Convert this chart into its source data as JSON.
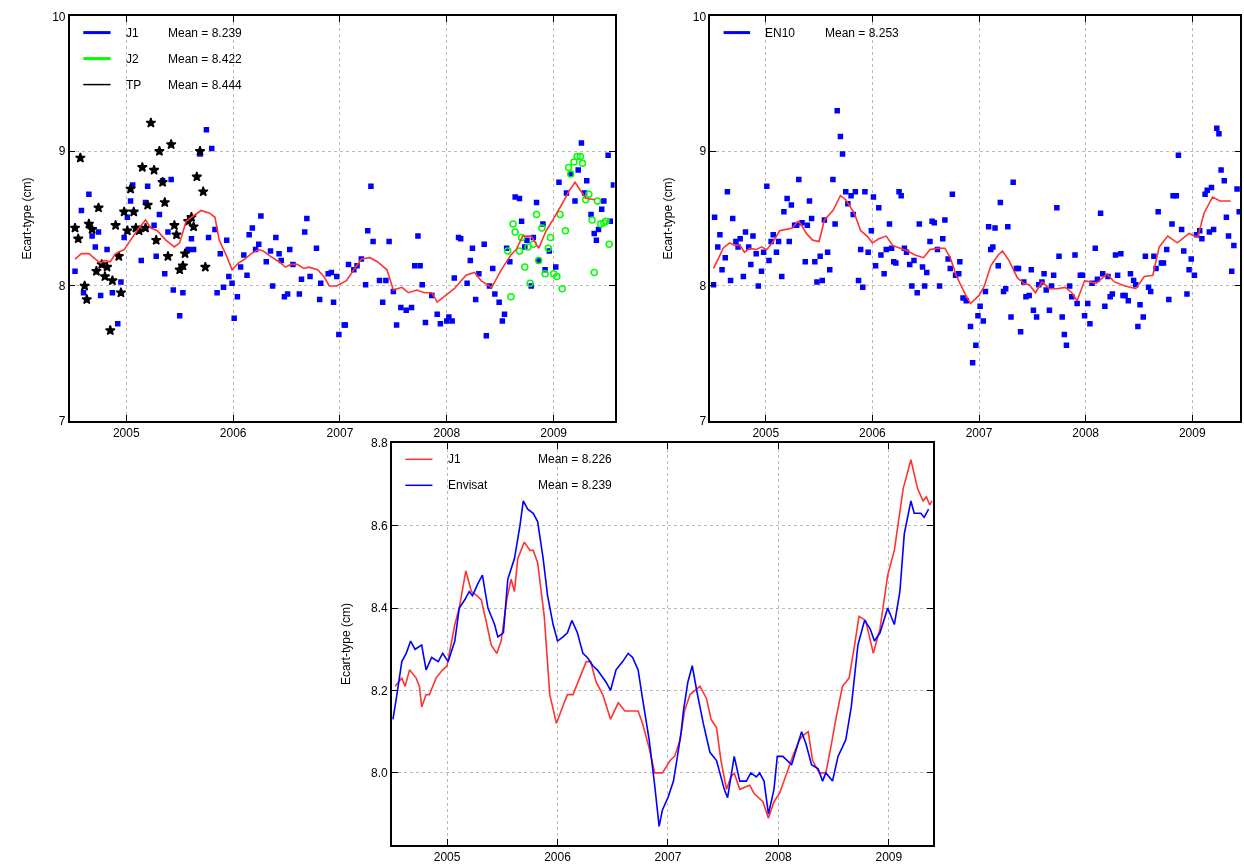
{
  "chart_data": [
    {
      "type": "scatter",
      "ylabel": "Ecart-type (cm)",
      "xlim": [
        2004.47,
        2009.57
      ],
      "ylim": [
        7,
        10
      ],
      "xticks": [
        2005,
        2006,
        2007,
        2008,
        2009
      ],
      "yticks": [
        7,
        8,
        9,
        10
      ],
      "grid": true,
      "legend": "top left",
      "annotations": [
        "Mean = 8.239",
        "Mean = 8.422",
        "Mean = 8.444"
      ],
      "series": [
        {
          "name": "J1",
          "color": "#0000ff",
          "marker": "square",
          "x": [
            2004.52,
            2004.58,
            2004.6,
            2004.65,
            2004.68,
            2004.71,
            2004.74,
            2004.76,
            2004.82,
            2004.87,
            2004.92,
            2004.95,
            2004.98,
            2005.01,
            2005.04,
            2005.06,
            2005.14,
            2005.18,
            2005.2,
            2005.26,
            2005.28,
            2005.31,
            2005.34,
            2005.36,
            2005.39,
            2005.42,
            2005.44,
            2005.5,
            2005.53,
            2005.58,
            2005.61,
            2005.63,
            2005.69,
            2005.75,
            2005.77,
            2005.8,
            2005.83,
            2005.85,
            2005.88,
            2005.91,
            2005.94,
            2005.96,
            2005.99,
            2006.01,
            2006.04,
            2006.07,
            2006.1,
            2006.13,
            2006.15,
            2006.18,
            2006.21,
            2006.24,
            2006.26,
            2006.31,
            2006.35,
            2006.37,
            2006.4,
            2006.43,
            2006.45,
            2006.48,
            2006.51,
            2006.53,
            2006.56,
            2006.62,
            2006.64,
            2006.67,
            2006.69,
            2006.72,
            2006.78,
            2006.81,
            2006.82,
            2006.89,
            2006.92,
            2006.94,
            2006.97,
            2006.99,
            2007.04,
            2007.05,
            2007.08,
            2007.13,
            2007.16,
            2007.2,
            2007.24,
            2007.26,
            2007.29,
            2007.31,
            2007.37,
            2007.4,
            2007.43,
            2007.46,
            2007.5,
            2007.53,
            2007.57,
            2007.62,
            2007.67,
            2007.7,
            2007.73,
            2007.75,
            2007.77,
            2007.8,
            2007.86,
            2007.91,
            2007.94,
            2008.0,
            2008.02,
            2008.05,
            2008.07,
            2008.11,
            2008.13,
            2008.19,
            2008.22,
            2008.24,
            2008.27,
            2008.3,
            2008.35,
            2008.37,
            2008.4,
            2008.43,
            2008.45,
            2008.49,
            2008.52,
            2008.54,
            2008.56,
            2008.59,
            2008.64,
            2008.68,
            2008.7,
            2008.73,
            2008.75,
            2008.79,
            2008.81,
            2008.84,
            2008.86,
            2008.9,
            2008.92,
            2008.96,
            2009.02,
            2009.05,
            2009.12,
            2009.16,
            2009.2,
            2009.23,
            2009.26,
            2009.29,
            2009.31,
            2009.35,
            2009.38,
            2009.4,
            2009.42,
            2009.45,
            2009.47,
            2009.51,
            2009.53,
            2009.56
          ],
          "values": [
            8.11,
            8.56,
            7.95,
            8.68,
            8.37,
            8.29,
            8.4,
            7.93,
            8.27,
            7.95,
            7.72,
            8.03,
            8.36,
            8.51,
            8.63,
            8.75,
            8.19,
            8.62,
            8.74,
            8.45,
            8.22,
            8.53,
            8.78,
            8.09,
            8.4,
            8.79,
            7.97,
            7.78,
            7.95,
            8.27,
            8.35,
            8.27,
            8.98,
            9.16,
            8.36,
            9.02,
            8.42,
            7.95,
            8.24,
            7.99,
            8.34,
            8.07,
            8.02,
            7.76,
            7.92,
            8.14,
            8.23,
            8.08,
            8.38,
            8.43,
            8.27,
            8.31,
            8.52,
            8.18,
            8.26,
            8.0,
            8.36,
            8.24,
            8.19,
            7.92,
            7.94,
            8.27,
            8.16,
            7.94,
            8.05,
            8.4,
            8.5,
            8.07,
            8.28,
            7.9,
            8.02,
            8.09,
            8.1,
            7.88,
            8.07,
            7.64,
            7.71,
            7.71,
            8.16,
            8.12,
            8.15,
            8.2,
            8.01,
            8.41,
            8.74,
            8.33,
            8.04,
            7.88,
            8.04,
            8.33,
            7.96,
            7.71,
            7.84,
            7.82,
            7.84,
            8.15,
            8.37,
            8.15,
            8.01,
            7.73,
            7.93,
            7.79,
            7.72,
            7.74,
            7.77,
            7.74,
            8.06,
            8.36,
            8.35,
            8.02,
            8.19,
            8.28,
            7.9,
            8.09,
            8.31,
            7.63,
            8.0,
            8.13,
            7.94,
            7.88,
            7.74,
            7.79,
            8.28,
            8.18,
            8.66,
            8.65,
            8.48,
            8.29,
            8.34,
            8.0,
            8.36,
            8.62,
            8.19,
            8.46,
            8.12,
            8.26,
            8.14,
            8.77,
            8.69,
            8.83,
            8.63,
            8.86,
            9.06,
            8.69,
            8.78,
            8.53,
            8.39,
            8.34,
            8.42,
            8.57,
            8.63,
            8.97,
            8.48,
            8.75
          ]
        },
        {
          "name": "J2",
          "color": "#00ff00",
          "marker": "circle",
          "x": [
            2008.57,
            2008.6,
            2008.62,
            2008.64,
            2008.68,
            2008.7,
            2008.73,
            2008.76,
            2008.78,
            2008.81,
            2008.84,
            2008.86,
            2008.89,
            2008.92,
            2008.95,
            2008.97,
            2009.0,
            2009.03,
            2009.06,
            2009.08,
            2009.11,
            2009.14,
            2009.16,
            2009.19,
            2009.22,
            2009.25,
            2009.27,
            2009.3,
            2009.33,
            2009.36,
            2009.38,
            2009.41,
            2009.44,
            2009.47,
            2009.49,
            2009.52
          ],
          "values": [
            8.26,
            7.92,
            8.46,
            8.4,
            8.26,
            8.36,
            8.14,
            8.29,
            8.02,
            8.31,
            8.53,
            8.19,
            8.43,
            8.09,
            8.28,
            8.36,
            8.09,
            8.07,
            8.53,
            7.98,
            8.41,
            8.88,
            8.83,
            8.92,
            8.96,
            8.96,
            8.91,
            8.64,
            8.68,
            8.49,
            8.1,
            8.63,
            8.46,
            8.47,
            8.48,
            8.31
          ]
        },
        {
          "name": "TP",
          "color": "#000000",
          "marker": "star",
          "x": [
            2004.52,
            2004.55,
            2004.57,
            2004.61,
            2004.63,
            2004.65,
            2004.68,
            2004.72,
            2004.74,
            2004.77,
            2004.8,
            2004.82,
            2004.85,
            2004.87,
            2004.9,
            2004.93,
            2004.95,
            2004.98,
            2005.01,
            2005.04,
            2005.07,
            2005.09,
            2005.12,
            2005.15,
            2005.18,
            2005.2,
            2005.23,
            2005.26,
            2005.28,
            2005.31,
            2005.34,
            2005.36,
            2005.39,
            2005.42,
            2005.45,
            2005.47,
            2005.5,
            2005.53,
            2005.55,
            2005.58,
            2005.61,
            2005.63,
            2005.66,
            2005.69,
            2005.72,
            2005.74
          ],
          "values": [
            8.43,
            8.35,
            8.95,
            8.0,
            7.9,
            8.46,
            8.42,
            8.11,
            8.58,
            8.16,
            8.07,
            8.14,
            7.67,
            8.04,
            8.45,
            8.22,
            7.95,
            8.55,
            8.41,
            8.72,
            8.55,
            8.43,
            8.41,
            8.88,
            8.43,
            8.6,
            9.21,
            8.86,
            8.34,
            9.0,
            8.77,
            8.62,
            8.22,
            9.05,
            8.45,
            8.38,
            8.12,
            8.15,
            8.24,
            8.48,
            8.51,
            8.44,
            8.81,
            9.0,
            8.7,
            8.14
          ]
        },
        {
          "type": "line",
          "color": "#ff3333",
          "marker": "none",
          "x": [
            2004.52,
            2004.58,
            2004.65,
            2004.71,
            2004.76,
            2004.8,
            2004.85,
            2004.9,
            2004.98,
            2005.04,
            2005.1,
            2005.18,
            2005.23,
            2005.29,
            2005.37,
            2005.45,
            2005.5,
            2005.56,
            2005.61,
            2005.7,
            2005.78,
            2005.83,
            2005.87,
            2005.94,
            2005.99,
            2006.05,
            2006.11,
            2006.17,
            2006.24,
            2006.28,
            2006.35,
            2006.43,
            2006.49,
            2006.54,
            2006.6,
            2006.66,
            2006.71,
            2006.79,
            2006.85,
            2006.9,
            2006.97,
            2007.06,
            2007.13,
            2007.2,
            2007.28,
            2007.35,
            2007.44,
            2007.5,
            2007.58,
            2007.64,
            2007.72,
            2007.79,
            2007.86,
            2007.91,
            2007.99,
            2008.07,
            2008.18,
            2008.26,
            2008.32,
            2008.42,
            2008.51,
            2008.6,
            2008.65,
            2008.71,
            2008.79,
            2008.86,
            2008.93,
            2009.0,
            2009.08,
            2009.14,
            2009.2,
            2009.25,
            2009.3,
            2009.39
          ],
          "values": [
            8.2,
            8.24,
            8.24,
            8.2,
            8.17,
            8.19,
            8.18,
            8.24,
            8.27,
            8.34,
            8.41,
            8.49,
            8.43,
            8.41,
            8.34,
            8.29,
            8.32,
            8.48,
            8.51,
            8.56,
            8.54,
            8.51,
            8.34,
            8.22,
            8.12,
            8.17,
            8.2,
            8.24,
            8.27,
            8.26,
            8.22,
            8.18,
            8.14,
            8.16,
            8.16,
            8.13,
            8.14,
            8.12,
            8.07,
            8.0,
            8.0,
            8.04,
            8.12,
            8.2,
            8.21,
            8.18,
            8.12,
            7.97,
            7.99,
            7.95,
            7.97,
            7.95,
            7.95,
            7.88,
            7.93,
            7.98,
            8.08,
            8.1,
            8.04,
            7.99,
            8.12,
            8.23,
            8.27,
            8.37,
            8.37,
            8.28,
            8.41,
            8.5,
            8.61,
            8.7,
            8.77,
            8.71,
            8.65,
            8.64
          ]
        }
      ]
    },
    {
      "type": "scatter",
      "ylabel": "Ecart-type (cm)",
      "xlim": [
        2004.48,
        2009.45
      ],
      "ylim": [
        7,
        10
      ],
      "xticks": [
        2005,
        2006,
        2007,
        2008,
        2009
      ],
      "yticks": [
        7,
        8,
        9,
        10
      ],
      "grid": true,
      "legend": "top left",
      "annotations": [
        "Mean = 8.253"
      ],
      "series": [
        {
          "name": "EN10",
          "color": "#0000ff",
          "marker": "square",
          "x": [
            2004.51,
            2004.52,
            2004.55,
            2004.57,
            2004.59,
            2004.62,
            2004.64,
            2004.67,
            2004.69,
            2004.72,
            2004.74,
            2004.76,
            2004.79,
            2004.81,
            2004.84,
            2004.86,
            2004.88,
            2004.91,
            2004.93,
            2004.96,
            2004.98,
            2005.01,
            2005.03,
            2005.05,
            2005.07,
            2005.1,
            2005.12,
            2005.15,
            2005.17,
            2005.2,
            2005.22,
            2005.24,
            2005.27,
            2005.29,
            2005.31,
            2005.34,
            2005.37,
            2005.39,
            2005.41,
            2005.43,
            2005.46,
            2005.48,
            2005.51,
            2005.53,
            2005.55,
            2005.58,
            2005.6,
            2005.63,
            2005.65,
            2005.67,
            2005.7,
            2005.72,
            2005.75,
            2005.77,
            2005.8,
            2005.82,
            2005.84,
            2005.87,
            2005.89,
            2005.91,
            2005.93,
            2005.96,
            2005.99,
            2006.01,
            2006.03,
            2006.06,
            2006.08,
            2006.11,
            2006.13,
            2006.16,
            2006.18,
            2006.2,
            2006.22,
            2006.25,
            2006.27,
            2006.3,
            2006.32,
            2006.35,
            2006.37,
            2006.39,
            2006.42,
            2006.44,
            2006.47,
            2006.49,
            2006.51,
            2006.54,
            2006.56,
            2006.58,
            2006.61,
            2006.63,
            2006.66,
            2006.68,
            2006.71,
            2006.73,
            2006.75,
            2006.78,
            2006.81,
            2006.82,
            2006.85,
            2006.88,
            2006.92,
            2006.94,
            2006.97,
            2006.99,
            2007.01,
            2007.04,
            2007.06,
            2007.09,
            2007.11,
            2007.13,
            2007.15,
            2007.18,
            2007.2,
            2007.23,
            2007.25,
            2007.27,
            2007.3,
            2007.32,
            2007.35,
            2007.37,
            2007.39,
            2007.42,
            2007.44,
            2007.47,
            2007.49,
            2007.51,
            2007.54,
            2007.56,
            2007.59,
            2007.61,
            2007.63,
            2007.66,
            2007.68,
            2007.7,
            2007.73,
            2007.75,
            2007.78,
            2007.8,
            2007.82,
            2007.85,
            2007.87,
            2007.9,
            2007.92,
            2007.95,
            2007.97,
            2007.99,
            2008.02,
            2008.04,
            2008.06,
            2008.09,
            2008.11,
            2008.14,
            2008.16,
            2008.18,
            2008.21,
            2008.23,
            2008.25,
            2008.28,
            2008.3,
            2008.33,
            2008.35,
            2008.37,
            2008.4,
            2008.42,
            2008.45,
            2008.47,
            2008.49,
            2008.51,
            2008.54,
            2008.56,
            2008.59,
            2008.61,
            2008.64,
            2008.66,
            2008.68,
            2008.71,
            2008.73,
            2008.76,
            2008.78,
            2008.81,
            2008.82,
            2008.85,
            2008.87,
            2008.9,
            2008.92,
            2008.95,
            2008.97,
            2008.99,
            2009.02,
            2009.04,
            2009.07,
            2009.09,
            2009.12,
            2009.14,
            2009.16,
            2009.18,
            2009.2,
            2009.23,
            2009.25,
            2009.27,
            2009.3,
            2009.32,
            2009.34,
            2009.37,
            2009.39,
            2009.42,
            2009.44
          ],
          "values": [
            8.01,
            8.51,
            8.29,
            8.38,
            8.12,
            8.21,
            8.7,
            8.04,
            8.5,
            8.33,
            8.29,
            8.35,
            8.07,
            8.4,
            8.29,
            8.16,
            8.37,
            8.24,
            8.0,
            8.11,
            8.25,
            8.74,
            8.19,
            8.33,
            8.38,
            8.25,
            8.33,
            8.07,
            8.55,
            8.65,
            8.33,
            8.6,
            8.45,
            8.45,
            8.79,
            8.47,
            8.18,
            8.45,
            8.63,
            8.5,
            8.18,
            8.03,
            8.22,
            8.04,
            8.49,
            8.25,
            8.12,
            8.79,
            8.46,
            9.3,
            9.11,
            8.98,
            8.7,
            8.61,
            8.67,
            8.53,
            8.7,
            8.04,
            8.27,
            7.99,
            8.7,
            8.25,
            8.41,
            8.66,
            8.15,
            8.58,
            8.23,
            8.09,
            8.27,
            8.46,
            8.28,
            8.18,
            8.17,
            8.7,
            8.67,
            8.28,
            8.25,
            8.16,
            8.0,
            8.19,
            7.95,
            8.46,
            8.14,
            8.0,
            8.1,
            8.33,
            8.48,
            8.47,
            8.27,
            8.0,
            8.35,
            8.49,
            8.2,
            8.13,
            8.68,
            8.08,
            8.09,
            8.18,
            7.91,
            7.89,
            7.7,
            7.43,
            7.56,
            7.78,
            7.85,
            7.74,
            7.96,
            8.44,
            8.27,
            8.29,
            8.43,
            8.15,
            8.62,
            7.96,
            7.98,
            8.44,
            7.77,
            8.77,
            8.13,
            8.13,
            7.66,
            8.03,
            7.92,
            7.93,
            8.12,
            7.82,
            7.77,
            8.01,
            8.03,
            8.09,
            7.97,
            7.82,
            8.0,
            8.08,
            8.58,
            8.22,
            7.77,
            7.64,
            7.56,
            8.0,
            7.92,
            8.23,
            7.87,
            8.08,
            8.08,
            7.78,
            7.87,
            7.72,
            8.02,
            8.28,
            8.05,
            8.54,
            8.09,
            7.85,
            8.07,
            7.92,
            7.94,
            8.23,
            8.08,
            8.24,
            7.93,
            7.93,
            7.89,
            8.09,
            8.04,
            8.01,
            7.7,
            7.86,
            7.77,
            8.22,
            7.99,
            7.96,
            8.22,
            8.13,
            8.55,
            8.17,
            8.17,
            8.27,
            7.9,
            8.46,
            8.67,
            8.67,
            8.97,
            8.42,
            8.26,
            7.94,
            8.12,
            8.2,
            8.08,
            8.38,
            8.41,
            8.35,
            8.68,
            8.71,
            8.4,
            8.73,
            8.42,
            9.17,
            9.13,
            8.86,
            8.78,
            8.51,
            8.37,
            8.11,
            8.3,
            8.72,
            8.55
          ]
        },
        {
          "type": "line",
          "color": "#ff3333",
          "marker": "none",
          "x": [
            2004.51,
            2004.56,
            2004.6,
            2004.66,
            2004.71,
            2004.76,
            2004.8,
            2004.85,
            2004.91,
            2004.96,
            2005.01,
            2005.07,
            2005.13,
            2005.19,
            2005.25,
            2005.3,
            2005.33,
            2005.38,
            2005.44,
            2005.5,
            2005.55,
            2005.63,
            2005.7,
            2005.75,
            2005.83,
            2005.89,
            2005.95,
            2006.0,
            2006.06,
            2006.13,
            2006.19,
            2006.26,
            2006.33,
            2006.4,
            2006.48,
            2006.54,
            2006.61,
            2006.68,
            2006.73,
            2006.79,
            2006.87,
            2006.92,
            2007.0,
            2007.05,
            2007.11,
            2007.18,
            2007.22,
            2007.28,
            2007.36,
            2007.42,
            2007.47,
            2007.53,
            2007.59,
            2007.66,
            2007.73,
            2007.81,
            2007.87,
            2007.92,
            2007.99,
            2008.1,
            2008.2,
            2008.27,
            2008.37,
            2008.47,
            2008.55,
            2008.63,
            2008.69,
            2008.77,
            2008.86,
            2008.97,
            2009.05,
            2009.11,
            2009.19,
            2009.26,
            2009.36
          ],
          "values": [
            8.13,
            8.21,
            8.28,
            8.32,
            8.3,
            8.3,
            8.25,
            8.28,
            8.27,
            8.29,
            8.27,
            8.33,
            8.41,
            8.42,
            8.43,
            8.48,
            8.46,
            8.39,
            8.34,
            8.33,
            8.49,
            8.56,
            8.67,
            8.64,
            8.54,
            8.41,
            8.37,
            8.32,
            8.35,
            8.37,
            8.3,
            8.28,
            8.26,
            8.23,
            8.21,
            8.27,
            8.28,
            8.28,
            8.21,
            8.07,
            7.94,
            7.87,
            7.93,
            8.0,
            8.15,
            8.23,
            8.26,
            8.19,
            8.06,
            8.02,
            8.01,
            7.95,
            8.03,
            7.98,
            7.98,
            7.99,
            7.95,
            7.89,
            8.04,
            8.02,
            8.09,
            8.03,
            8.0,
            7.98,
            8.07,
            8.08,
            8.29,
            8.37,
            8.32,
            8.39,
            8.36,
            8.54,
            8.66,
            8.63,
            8.63
          ]
        }
      ]
    },
    {
      "type": "line",
      "ylabel": "Ecart-type (cm)",
      "xlim": [
        2004.5,
        2009.4
      ],
      "ylim": [
        7.825,
        8.8
      ],
      "xticks": [
        2005,
        2006,
        2007,
        2008,
        2009
      ],
      "yticks": [
        {
          "value": 8,
          "label": "8.0"
        },
        {
          "value": 8.2,
          "label": "8.2"
        },
        {
          "value": 8.4,
          "label": "8.4"
        },
        {
          "value": 8.6,
          "label": "8.6"
        },
        {
          "value": 8.8,
          "label": "8.8"
        }
      ],
      "grid": true,
      "legend": "top left",
      "annotations": [
        "Mean = 8.226",
        "Mean = 8.239"
      ],
      "series": [
        {
          "name": "J1",
          "color": "#ff3333",
          "x": [
            2004.53,
            2004.59,
            2004.62,
            2004.66,
            2004.72,
            2004.75,
            2004.77,
            2004.81,
            2004.84,
            2004.9,
            2004.96,
            2005.0,
            2005.07,
            2005.11,
            2005.17,
            2005.22,
            2005.27,
            2005.31,
            2005.36,
            2005.4,
            2005.45,
            2005.49,
            2005.54,
            2005.58,
            2005.61,
            2005.64,
            2005.7,
            2005.75,
            2005.78,
            2005.82,
            2005.88,
            2005.93,
            2005.99,
            2006.06,
            2006.09,
            2006.14,
            2006.2,
            2006.26,
            2006.3,
            2006.35,
            2006.41,
            2006.48,
            2006.55,
            2006.61,
            2006.65,
            2006.73,
            2006.77,
            2006.83,
            2006.88,
            2006.92,
            2006.95,
            2007.02,
            2007.06,
            2007.11,
            2007.15,
            2007.2,
            2007.29,
            2007.35,
            2007.39,
            2007.44,
            2007.48,
            2007.53,
            2007.57,
            2007.6,
            2007.65,
            2007.74,
            2007.78,
            2007.86,
            2007.91,
            2007.96,
            2008.01,
            2008.09,
            2008.13,
            2008.19,
            2008.22,
            2008.27,
            2008.31,
            2008.37,
            2008.43,
            2008.48,
            2008.52,
            2008.58,
            2008.64,
            2008.69,
            2008.73,
            2008.79,
            2008.86,
            2008.92,
            2008.99,
            2009.05,
            2009.13,
            2009.2,
            2009.26,
            2009.31,
            2009.34,
            2009.37,
            2009.39
          ],
          "values": [
            8.21,
            8.23,
            8.21,
            8.25,
            8.23,
            8.21,
            8.16,
            8.19,
            8.19,
            8.23,
            8.25,
            8.26,
            8.36,
            8.4,
            8.49,
            8.44,
            8.43,
            8.42,
            8.36,
            8.31,
            8.29,
            8.32,
            8.42,
            8.47,
            8.44,
            8.52,
            8.56,
            8.54,
            8.54,
            8.51,
            8.38,
            8.19,
            8.12,
            8.17,
            8.19,
            8.19,
            8.23,
            8.27,
            8.27,
            8.22,
            8.19,
            8.13,
            8.17,
            8.15,
            8.15,
            8.15,
            8.12,
            8.06,
            8.0,
            8.0,
            8.0,
            8.03,
            8.04,
            8.08,
            8.15,
            8.19,
            8.21,
            8.18,
            8.13,
            8.11,
            8.03,
            7.96,
            7.99,
            8.0,
            7.96,
            7.97,
            7.95,
            7.93,
            7.89,
            7.93,
            7.95,
            8.01,
            8.04,
            8.08,
            8.09,
            8.1,
            8.03,
            8.0,
            8.0,
            8.07,
            8.13,
            8.21,
            8.23,
            8.31,
            8.38,
            8.37,
            8.29,
            8.35,
            8.48,
            8.54,
            8.69,
            8.76,
            8.69,
            8.66,
            8.67,
            8.65,
            8.66
          ]
        },
        {
          "name": "Envisat",
          "color": "#0000ff",
          "x": [
            2004.51,
            2004.54,
            2004.59,
            2004.63,
            2004.67,
            2004.71,
            2004.77,
            2004.81,
            2004.86,
            2004.92,
            2004.96,
            2005.01,
            2005.07,
            2005.11,
            2005.16,
            2005.2,
            2005.23,
            2005.28,
            2005.32,
            2005.37,
            2005.43,
            2005.46,
            2005.51,
            2005.55,
            2005.61,
            2005.66,
            2005.69,
            2005.73,
            2005.78,
            2005.82,
            2005.87,
            2005.91,
            2005.96,
            2006.0,
            2006.05,
            2006.09,
            2006.13,
            2006.18,
            2006.23,
            2006.27,
            2006.32,
            2006.36,
            2006.44,
            2006.48,
            2006.53,
            2006.59,
            2006.64,
            2006.68,
            2006.73,
            2006.77,
            2006.83,
            2006.88,
            2006.92,
            2006.95,
            2007.0,
            2007.05,
            2007.08,
            2007.12,
            2007.14,
            2007.18,
            2007.22,
            2007.26,
            2007.32,
            2007.38,
            2007.44,
            2007.47,
            2007.51,
            2007.54,
            2007.6,
            2007.65,
            2007.71,
            2007.75,
            2007.8,
            2007.83,
            2007.87,
            2007.91,
            2007.96,
            2007.99,
            2008.04,
            2008.12,
            2008.21,
            2008.25,
            2008.3,
            2008.36,
            2008.4,
            2008.43,
            2008.49,
            2008.54,
            2008.61,
            2008.66,
            2008.72,
            2008.78,
            2008.83,
            2008.87,
            2008.92,
            2008.99,
            2009.05,
            2009.1,
            2009.14,
            2009.2,
            2009.23,
            2009.29,
            2009.32,
            2009.36
          ],
          "values": [
            8.13,
            8.18,
            8.27,
            8.29,
            8.32,
            8.3,
            8.31,
            8.25,
            8.28,
            8.27,
            8.29,
            8.27,
            8.32,
            8.4,
            8.42,
            8.44,
            8.43,
            8.46,
            8.48,
            8.4,
            8.36,
            8.33,
            8.34,
            8.47,
            8.52,
            8.6,
            8.66,
            8.64,
            8.63,
            8.61,
            8.52,
            8.43,
            8.36,
            8.32,
            8.33,
            8.34,
            8.37,
            8.34,
            8.29,
            8.28,
            8.26,
            8.25,
            8.22,
            8.2,
            8.25,
            8.27,
            8.29,
            8.28,
            8.25,
            8.18,
            8.08,
            7.97,
            7.87,
            7.91,
            7.94,
            7.98,
            8.03,
            8.1,
            8.15,
            8.22,
            8.26,
            8.2,
            8.12,
            8.05,
            8.03,
            8.0,
            7.96,
            7.94,
            8.04,
            7.98,
            7.98,
            8.0,
            7.99,
            8.0,
            7.98,
            7.9,
            7.96,
            8.04,
            8.04,
            8.02,
            8.1,
            8.07,
            8.02,
            8.01,
            7.98,
            8.0,
            7.98,
            8.04,
            8.08,
            8.16,
            8.31,
            8.37,
            8.35,
            8.32,
            8.34,
            8.4,
            8.36,
            8.44,
            8.58,
            8.66,
            8.63,
            8.63,
            8.62,
            8.64
          ]
        }
      ]
    }
  ]
}
